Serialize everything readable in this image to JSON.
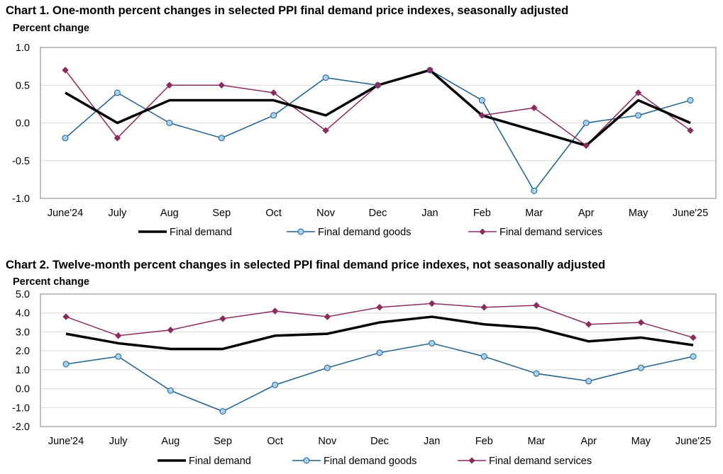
{
  "chart_data": [
    {
      "type": "line",
      "title": "Chart 1. One-month percent changes in selected PPI final demand price indexes, seasonally adjusted",
      "ylabel": "Percent change",
      "xlabel": "",
      "categories": [
        "June'24",
        "July",
        "Aug",
        "Sep",
        "Oct",
        "Nov",
        "Dec",
        "Jan",
        "Feb",
        "Mar",
        "Apr",
        "May",
        "June'25"
      ],
      "ylim": [
        -1.0,
        1.0
      ],
      "yticks": [
        -1.0,
        -0.5,
        0.0,
        0.5,
        1.0
      ],
      "ytick_labels": [
        "-1.0",
        "-0.5",
        "0.0",
        "0.5",
        "1.0"
      ],
      "grid": true,
      "legend": "bottom",
      "series": [
        {
          "name": "Final demand",
          "color": "#000000",
          "marker": "none",
          "values": [
            0.4,
            0.0,
            0.3,
            0.3,
            0.3,
            0.1,
            0.5,
            0.7,
            0.1,
            -0.1,
            -0.3,
            0.3,
            0.0
          ]
        },
        {
          "name": "Final demand goods",
          "color": "#1f5f8b",
          "marker": "circle",
          "values": [
            -0.2,
            0.4,
            0.0,
            -0.2,
            0.1,
            0.6,
            0.5,
            0.7,
            0.3,
            -0.9,
            0.0,
            0.1,
            0.3
          ]
        },
        {
          "name": "Final demand services",
          "color": "#8b2b5e",
          "marker": "diamond",
          "values": [
            0.7,
            -0.2,
            0.5,
            0.5,
            0.4,
            -0.1,
            0.5,
            0.7,
            0.1,
            0.2,
            -0.3,
            0.4,
            -0.1
          ]
        }
      ]
    },
    {
      "type": "line",
      "title": "Chart 2. Twelve-month percent changes in selected PPI final demand price indexes, not seasonally adjusted",
      "ylabel": "Percent change",
      "xlabel": "",
      "categories": [
        "June'24",
        "July",
        "Aug",
        "Sep",
        "Oct",
        "Nov",
        "Dec",
        "Jan",
        "Feb",
        "Mar",
        "Apr",
        "May",
        "June'25"
      ],
      "ylim": [
        -2.0,
        5.0
      ],
      "yticks": [
        -2.0,
        -1.0,
        0.0,
        1.0,
        2.0,
        3.0,
        4.0,
        5.0
      ],
      "ytick_labels": [
        "-2.0",
        "-1.0",
        "0.0",
        "1.0",
        "2.0",
        "3.0",
        "4.0",
        "5.0"
      ],
      "grid": true,
      "legend": "bottom",
      "series": [
        {
          "name": "Final demand",
          "color": "#000000",
          "marker": "none",
          "values": [
            2.9,
            2.4,
            2.1,
            2.1,
            2.8,
            2.9,
            3.5,
            3.8,
            3.4,
            3.2,
            2.5,
            2.7,
            2.3
          ]
        },
        {
          "name": "Final demand goods",
          "color": "#1f5f8b",
          "marker": "circle",
          "values": [
            1.3,
            1.7,
            -0.1,
            -1.2,
            0.2,
            1.1,
            1.9,
            2.4,
            1.7,
            0.8,
            0.4,
            1.1,
            1.7
          ]
        },
        {
          "name": "Final demand services",
          "color": "#8b2b5e",
          "marker": "diamond",
          "values": [
            3.8,
            2.8,
            3.1,
            3.7,
            4.1,
            3.8,
            4.3,
            4.5,
            4.3,
            4.4,
            3.4,
            3.5,
            2.7
          ]
        }
      ]
    }
  ]
}
